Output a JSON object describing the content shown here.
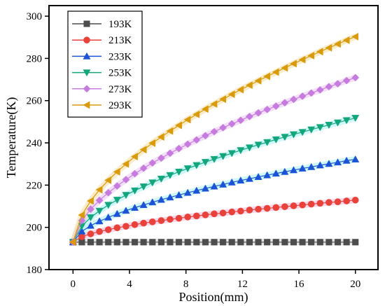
{
  "chart_data": {
    "type": "line",
    "xlabel": "Position(mm)",
    "ylabel": "Temperature(K)",
    "xlim": [
      -1.7,
      21.6
    ],
    "ylim": [
      180,
      305
    ],
    "xticks": [
      0,
      4,
      8,
      12,
      16,
      20
    ],
    "yticks": [
      180,
      200,
      220,
      240,
      260,
      280,
      300
    ],
    "grid": false,
    "legend_position": "top-left",
    "x": [
      0,
      0.625,
      1.25,
      1.875,
      2.5,
      3.125,
      3.75,
      4.375,
      5,
      5.625,
      6.25,
      6.875,
      7.5,
      8.125,
      8.75,
      9.375,
      10,
      10.625,
      11.25,
      11.875,
      12.5,
      13.125,
      13.75,
      14.375,
      15,
      15.625,
      16.25,
      16.875,
      17.5,
      18.125,
      18.75,
      19.375,
      20
    ],
    "series": [
      {
        "name": "193K",
        "color": "#4d4d4d",
        "marker": "square",
        "band_color": "#cfcfcf",
        "values": [
          193,
          193,
          193,
          193,
          193,
          193,
          193,
          193,
          193,
          193,
          193,
          193,
          193,
          193,
          193,
          193,
          193,
          193,
          193,
          193,
          193,
          193,
          193,
          193,
          193,
          193,
          193,
          193,
          193,
          193,
          193,
          193,
          193
        ]
      },
      {
        "name": "213K",
        "color": "#e8423a",
        "marker": "circle",
        "band_color": "#f7b3d4",
        "values": [
          193.0,
          195.6,
          196.9,
          198.0,
          198.9,
          199.8,
          200.5,
          201.3,
          202.0,
          202.6,
          203.2,
          203.8,
          204.3,
          204.9,
          205.4,
          205.9,
          206.4,
          206.8,
          207.3,
          207.7,
          208.2,
          208.6,
          209.0,
          209.4,
          209.8,
          210.2,
          210.6,
          211.0,
          211.4,
          211.8,
          212.1,
          212.5,
          212.9
        ]
      },
      {
        "name": "233K",
        "color": "#1c53d6",
        "marker": "triangle-up",
        "band_color": "#a6f0f5",
        "values": [
          193.0,
          198.1,
          200.8,
          202.9,
          204.7,
          206.4,
          207.9,
          209.3,
          210.6,
          211.9,
          213.1,
          214.2,
          215.3,
          216.4,
          217.4,
          218.4,
          219.4,
          220.3,
          221.3,
          222.2,
          223.0,
          223.9,
          224.7,
          225.5,
          226.3,
          227.1,
          227.9,
          228.6,
          229.4,
          230.1,
          230.8,
          231.6,
          232.2
        ]
      },
      {
        "name": "253K",
        "color": "#12a67a",
        "marker": "triangle-down",
        "band_color": "#a6f0f5",
        "values": [
          193.0,
          200.6,
          204.7,
          207.8,
          210.6,
          213.0,
          215.3,
          217.4,
          219.3,
          221.2,
          223.0,
          224.7,
          226.3,
          227.9,
          229.4,
          230.9,
          232.3,
          233.7,
          235.1,
          236.5,
          237.8,
          239.1,
          240.3,
          241.6,
          242.8,
          244.0,
          245.1,
          246.3,
          247.4,
          248.5,
          249.6,
          250.7,
          251.8
        ]
      },
      {
        "name": "273K",
        "color": "#c77bdf",
        "marker": "diamond",
        "band_color": "#e7c6f3",
        "values": [
          193.0,
          203.2,
          208.6,
          212.8,
          216.4,
          219.6,
          222.6,
          225.4,
          228.0,
          230.5,
          232.8,
          235.1,
          237.3,
          239.4,
          241.4,
          243.4,
          245.3,
          247.2,
          249.0,
          250.7,
          252.5,
          254.2,
          255.8,
          257.4,
          259.0,
          260.6,
          262.1,
          263.6,
          265.1,
          266.6,
          268.0,
          269.5,
          270.9
        ]
      },
      {
        "name": "293K",
        "color": "#d99a0b",
        "marker": "triangle-left",
        "band_color": "#f5dc9a",
        "values": [
          193.0,
          205.8,
          212.5,
          217.8,
          222.3,
          226.3,
          230.0,
          233.5,
          236.8,
          239.9,
          242.8,
          245.6,
          248.3,
          251.0,
          253.5,
          256.0,
          258.4,
          260.7,
          263.0,
          265.2,
          267.3,
          269.4,
          271.5,
          273.5,
          275.5,
          277.5,
          279.4,
          281.3,
          283.2,
          285.0,
          286.8,
          288.6,
          290.3
        ]
      }
    ]
  }
}
